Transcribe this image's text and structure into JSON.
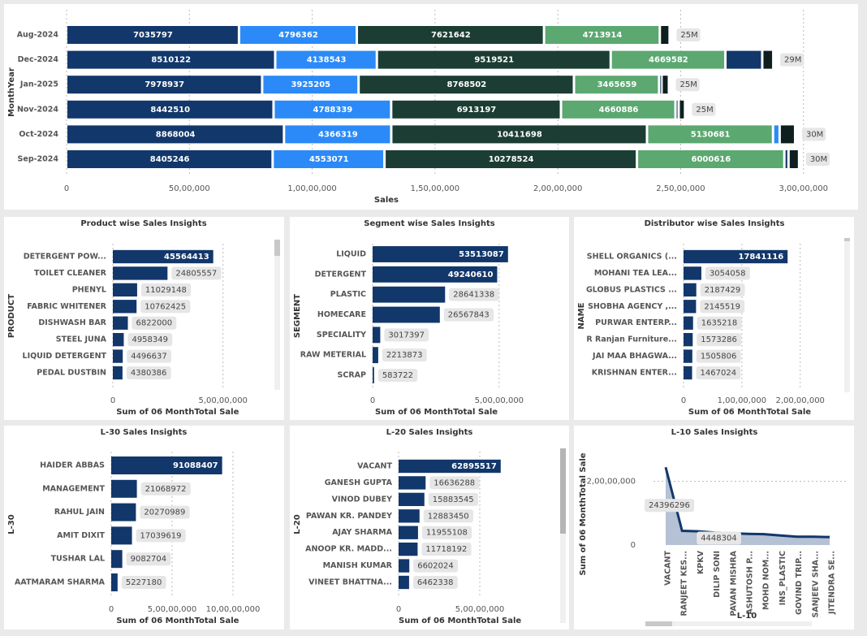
{
  "chart_data": [
    {
      "type": "stacked_bar",
      "orientation": "horizontal",
      "categories": [
        "Aug-2024",
        "Dec-2024",
        "Jan-2025",
        "Nov-2024",
        "Oct-2024",
        "Sep-2024"
      ],
      "series": [
        {
          "color": "#12376b",
          "values": [
            7035797,
            8510122,
            7978937,
            8442510,
            8868004,
            8405246
          ]
        },
        {
          "color": "#2b8af7",
          "values": [
            4796362,
            4138543,
            3925205,
            4788339,
            4366319,
            4553071
          ]
        },
        {
          "color": "#1c3d33",
          "values": [
            7621642,
            9519521,
            8768502,
            6913197,
            10411698,
            10278524
          ]
        },
        {
          "color": "#5ba870",
          "values": [
            4713914,
            4669582,
            3465659,
            4660886,
            5130681,
            6000616
          ]
        },
        {
          "color": "#12376b",
          "values": [
            null,
            1500000,
            100000,
            130000,
            null,
            170000
          ]
        },
        {
          "color": "#2b8af7",
          "values": [
            null,
            null,
            null,
            null,
            270000,
            null
          ]
        },
        {
          "color": "#0f1e1e",
          "values": [
            400000,
            450000,
            300000,
            260000,
            630000,
            430000
          ]
        }
      ],
      "total_labels": [
        "25M",
        "29M",
        "25M",
        "25M",
        "30M",
        "30M"
      ],
      "xlabel": "Sales",
      "ylabel": "MonthYear",
      "xlim": [
        0,
        31000000
      ],
      "xticks": [
        0,
        {
          "value": 5000000,
          "label": "50,00,000"
        },
        {
          "value": 10000000,
          "label": "1,00,00,000"
        },
        {
          "value": 15000000,
          "label": "1,50,00,000"
        },
        {
          "value": 20000000,
          "label": "2,00,00,000"
        },
        {
          "value": 25000000,
          "label": "2,50,00,000"
        },
        {
          "value": 30000000,
          "label": "3,00,00,000"
        }
      ],
      "grid": true
    },
    {
      "type": "bar",
      "orientation": "horizontal",
      "title": "Product wise Sales Insights",
      "categories": [
        "DETERGENT POW...",
        "TOILET CLEANER",
        "PHENYL",
        "FABRIC WHITENER",
        "DISHWASH BAR",
        "STEEL JUNA",
        "LIQUID DETERGENT",
        "PEDAL DUSTBIN"
      ],
      "values": [
        45564413,
        24805557,
        11029148,
        10762425,
        6822000,
        4958349,
        4496637,
        4380386
      ],
      "color": "#12376b",
      "xlabel": "Sum of 06 MonthTotal Sale",
      "ylabel": "PRODUCT",
      "xlim": [
        0,
        70000000
      ],
      "xticks": [
        0,
        {
          "value": 50000000,
          "label": "5,00,00,000"
        }
      ],
      "grid": true
    },
    {
      "type": "bar",
      "orientation": "horizontal",
      "title": "Segment wise Sales Insights",
      "categories": [
        "LIQUID",
        "DETERGENT",
        "PLASTIC",
        "HOMECARE",
        "SPECIALITY",
        "RAW METERIAL",
        "SCRAP"
      ],
      "values": [
        53513087,
        49240610,
        28641338,
        26567843,
        3017397,
        2213873,
        583722
      ],
      "color": "#12376b",
      "xlabel": "Sum of 06 MonthTotal Sale",
      "ylabel": "SEGMENT",
      "xlim": [
        0,
        60000000
      ],
      "xticks": [
        0,
        {
          "value": 50000000,
          "label": "5,00,00,000"
        }
      ],
      "grid": true
    },
    {
      "type": "bar",
      "orientation": "horizontal",
      "title": "Distributor wise Sales Insights",
      "categories": [
        "SHELL ORGANICS (...",
        "MOHANI TEA LEA...",
        "GLOBUS PLASTICS ...",
        "SHOBHA AGENCY ,...",
        "PURWAR ENTERP...",
        "R Ranjan Furniture...",
        "JAI MAA BHAGWA...",
        "KRISHNAN ENTER..."
      ],
      "values": [
        17841116,
        3054058,
        2187429,
        2145519,
        1635218,
        1573286,
        1505806,
        1467024
      ],
      "color": "#12376b",
      "xlabel": "Sum of 06 MonthTotal Sale",
      "ylabel": "NAME",
      "xlim": [
        0,
        27000000
      ],
      "xticks": [
        0,
        {
          "value": 10000000,
          "label": "1,00,00,000"
        },
        {
          "value": 20000000,
          "label": "2,00,00,000"
        }
      ],
      "grid": true
    },
    {
      "type": "bar",
      "orientation": "horizontal",
      "title": "L-30 Sales Insights",
      "categories": [
        "HAIDER ABBAS",
        "MANAGEMENT",
        "RAHUL JAIN",
        "AMIT DIXIT",
        "TUSHAR LAL",
        "AATMARAM SHARMA"
      ],
      "values": [
        91088407,
        21068972,
        20270989,
        17039619,
        9082704,
        5227180
      ],
      "color": "#12376b",
      "xlabel": "Sum of 06 MonthTotal Sale",
      "ylabel": "L-30",
      "xlim": [
        0,
        130000000
      ],
      "xticks": [
        0,
        {
          "value": 50000000,
          "label": "5,00,00,000"
        },
        {
          "value": 100000000,
          "label": "10,00,00,000"
        }
      ],
      "grid": true
    },
    {
      "type": "bar",
      "orientation": "horizontal",
      "title": "L-20 Sales Insights",
      "categories": [
        "VACANT",
        "GANESH GUPTA",
        "VINOD DUBEY",
        "PAWAN KR. PANDEY",
        "AJAY SHARMA",
        "ANOOP KR. MADD...",
        "MANISH KUMAR",
        "VINEET BHATTNA..."
      ],
      "values": [
        62895517,
        16636288,
        15883545,
        12883450,
        11955108,
        11718192,
        6602024,
        6462338
      ],
      "color": "#12376b",
      "xlabel": "Sum of 06 MonthTotal Sale",
      "ylabel": "L-20",
      "xlim": [
        0,
        90000000
      ],
      "xticks": [
        0,
        {
          "value": 50000000,
          "label": "5,00,00,000"
        }
      ],
      "grid": true
    },
    {
      "type": "area",
      "title": "L-10 Sales Insights",
      "categories": [
        "VACANT",
        "RANJEET KES...",
        "KPKV",
        "DILIP SONI",
        "PAVAN MISHRA",
        "ASHUTOSH P...",
        "MOHD NOM...",
        "INS_PLASTIC",
        "GOVIND TRIP...",
        "SANJEEV SHA...",
        "JITENDRA SE..."
      ],
      "values": [
        24396296,
        4448304,
        4300000,
        3900000,
        3700000,
        3500000,
        3400000,
        3000000,
        2600000,
        2600000,
        2500000
      ],
      "value_labels": [
        "24396296",
        "4448304",
        null,
        null,
        null,
        null,
        null,
        null,
        null,
        null,
        null
      ],
      "color": "#12376b",
      "fill": "#a8b6cc",
      "xlabel": "L-10",
      "ylabel": "Sum of 06 MonthTotal Sale",
      "ylim": [
        0,
        27000000
      ],
      "yticks": [
        0,
        {
          "value": 20000000,
          "label": "2,00,00,000"
        }
      ],
      "grid": true
    }
  ]
}
